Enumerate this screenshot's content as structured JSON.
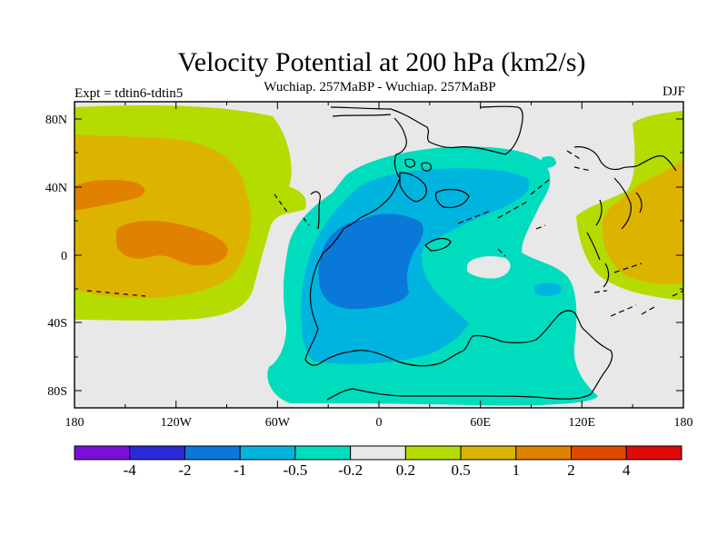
{
  "title": "Velocity Potential at 200 hPa (km2/s)",
  "subtitle": "Wuchiap. 257MaBP - Wuchiap. 257MaBP",
  "experiment": "Expt = tdtin6-tdtin5",
  "season": "DJF",
  "x_ticks": [
    "180",
    "120W",
    "60W",
    "0",
    "60E",
    "120E",
    "180"
  ],
  "y_ticks": [
    "80N",
    "40N",
    "0",
    "40S",
    "80S"
  ],
  "colorbar": {
    "colors": [
      "#7a10d8",
      "#2a2ad8",
      "#0a78d8",
      "#00b4e0",
      "#00dcbe",
      "#e8e8e8",
      "#b4dc00",
      "#dcb400",
      "#e08200",
      "#e04a00",
      "#e00a0a"
    ],
    "labels": [
      "-4",
      "-2",
      "-1",
      "-0.5",
      "-0.2",
      "0.2",
      "0.5",
      "1",
      "2",
      "4"
    ]
  },
  "field_colors": {
    "background": "#e8e8e8",
    "pos_1": "#b4dc00",
    "pos_2": "#dcb400",
    "pos_3": "#e08200",
    "neg_1": "#00dcbe",
    "neg_2": "#00b4e0",
    "neg_3": "#0a78d8"
  }
}
